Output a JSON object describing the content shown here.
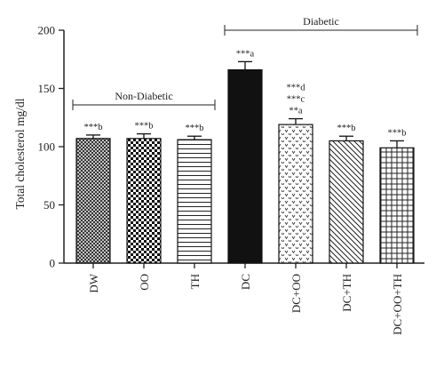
{
  "chart_data": {
    "type": "bar",
    "ylabel": "Total cholesterol mg/dl",
    "xlabel": "",
    "ylim": [
      0,
      200
    ],
    "yticks": [
      "0",
      "50",
      "100",
      "150",
      "200"
    ],
    "categories": [
      "DW",
      "OO",
      "TH",
      "DC",
      "DC+OO",
      "DC+TH",
      "DC+OO+TH"
    ],
    "values": [
      107,
      107,
      106,
      166,
      119,
      105,
      99
    ],
    "errors": [
      3,
      4,
      3,
      7,
      5,
      4,
      6
    ],
    "patterns": [
      "crosshatch-fine",
      "checker",
      "horizontal",
      "solid",
      "v-marks",
      "diagonal",
      "grid"
    ],
    "significance": [
      [
        "***b"
      ],
      [
        "***b"
      ],
      [
        "***b"
      ],
      [
        "***a"
      ],
      [
        "***d",
        "***c",
        "**a"
      ],
      [
        "***b"
      ],
      [
        "***b"
      ]
    ],
    "groups": [
      {
        "label": "Non-Diabetic",
        "from": 0,
        "to": 2
      },
      {
        "label": "Diabetic",
        "from": 3,
        "to": 6
      }
    ],
    "grid": false,
    "colors": {
      "bar_dark": "#111111",
      "axis": "#222222",
      "background": "#ffffff"
    }
  }
}
